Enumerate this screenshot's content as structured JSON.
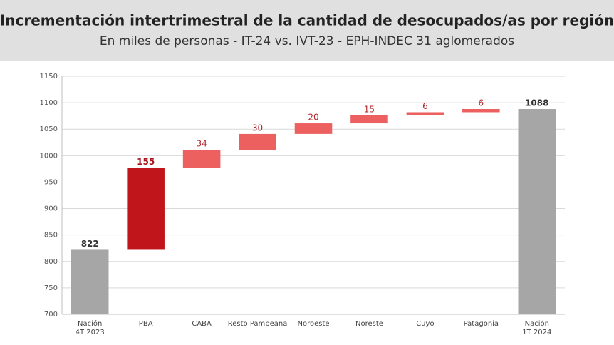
{
  "chart_data": {
    "type": "waterfall",
    "title": "Incrementación intertrimestral de la cantidad de desocupados/as por región",
    "subtitle": "En miles de personas - IT-24 vs. IVT-23 - EPH-INDEC 31 aglomerados",
    "categories": [
      [
        "Nación",
        "4T 2023"
      ],
      [
        "PBA"
      ],
      [
        "CABA"
      ],
      [
        "Resto Pampeana"
      ],
      [
        "Noroeste"
      ],
      [
        "Noreste"
      ],
      [
        "Cuyo"
      ],
      [
        "Patagonia"
      ],
      [
        "Nación",
        "1T 2024"
      ]
    ],
    "values": [
      822,
      155,
      34,
      30,
      20,
      15,
      6,
      6,
      1088
    ],
    "totals": [
      true,
      false,
      false,
      false,
      false,
      false,
      false,
      false,
      true
    ],
    "colors": [
      "#a6a6a6",
      "#c0161b",
      "#ec6060",
      "#ec6060",
      "#ec6060",
      "#ec6060",
      "#ec6060",
      "#ec6060",
      "#a6a6a6"
    ],
    "label_colors": [
      "#333333",
      "#a8141a",
      "#b3262b",
      "#b3262b",
      "#b3262b",
      "#b3262b",
      "#b3262b",
      "#b3262b",
      "#333333"
    ],
    "ylim": [
      700,
      1150
    ],
    "yticks": [
      700,
      750,
      800,
      850,
      900,
      950,
      1000,
      1050,
      1100,
      1150
    ],
    "grid": true
  }
}
